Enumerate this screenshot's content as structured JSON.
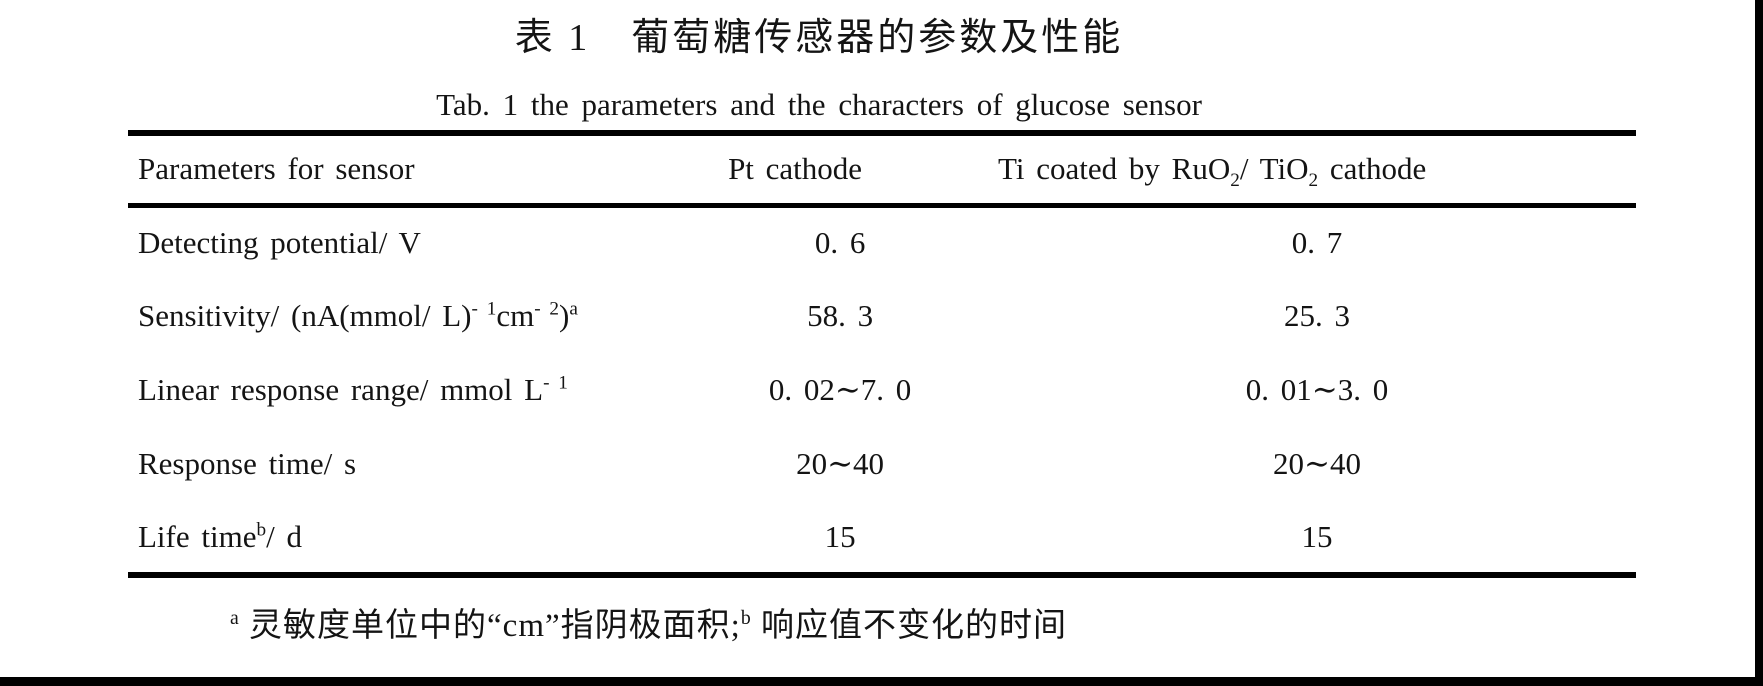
{
  "titles": {
    "zh": "表 1　葡萄糖传感器的参数及性能",
    "en": "Tab. 1 the parameters and the characters of glucose sensor"
  },
  "table": {
    "header": {
      "parameters": "Parameters for sensor",
      "pt": "Pt cathode",
      "ti_pre": "Ti coated by RuO",
      "ti_sub1": "2",
      "ti_mid": "/ TiO",
      "ti_sub2": "2",
      "ti_post": " cathode"
    },
    "rows": [
      {
        "label": "Detecting potential/ V",
        "pt": "0. 6",
        "ti": "0. 7"
      },
      {
        "label_pre": "Sensitivity/ (nA(mmol/ L)",
        "sup1": "- 1",
        "label_mid": "cm",
        "sup2": "- 2",
        "label_close": ")",
        "sup3": "a",
        "pt": "58. 3",
        "ti": "25. 3"
      },
      {
        "label_pre": "Linear response range/ mmol L",
        "sup1": "- 1",
        "pt": "0. 02∼7. 0",
        "ti": "0. 01∼3. 0"
      },
      {
        "label": "Response time/ s",
        "pt": "20∼40",
        "ti": "20∼40"
      },
      {
        "label_pre": "Life time",
        "sup1": "b",
        "label_post": "/ d",
        "pt": "15",
        "ti": "15"
      }
    ]
  },
  "footnote": {
    "sup_a": "a",
    "text_a": " 灵敏度单位中的“cm”指阴极面积;",
    "sup_b": "b",
    "text_b": " 响应值不变化的时间"
  },
  "chart_data": {
    "type": "table",
    "title": "表 1 葡萄糖传感器的参数及性能 / Tab. 1 the parameters and the characters of glucose sensor",
    "columns": [
      "Parameters for sensor",
      "Pt cathode",
      "Ti coated by RuO2/TiO2 cathode"
    ],
    "rows": [
      [
        "Detecting potential/ V",
        "0.6",
        "0.7"
      ],
      [
        "Sensitivity/ (nA(mmol/L)^-1 cm^-2)^a",
        "58.3",
        "25.3"
      ],
      [
        "Linear response range/ mmol L^-1",
        "0.02~7.0",
        "0.01~3.0"
      ],
      [
        "Response time/ s",
        "20~40",
        "20~40"
      ],
      [
        "Life time^b/ d",
        "15",
        "15"
      ]
    ],
    "footnote": "a 灵敏度单位中的“cm”指阴极面积; b 响应值不变化的时间"
  },
  "colors": {
    "background": "#ffffff",
    "ink": "#141414",
    "rule": "#000000"
  }
}
